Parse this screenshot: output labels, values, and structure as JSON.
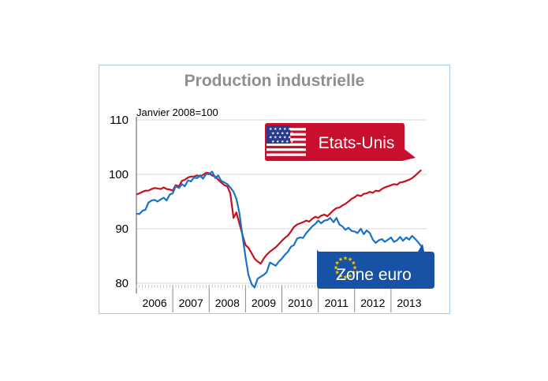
{
  "chart_data": {
    "type": "line",
    "title": "Production industrielle",
    "subtitle": "Janvier 2008=100",
    "xlabel": "",
    "ylabel": "",
    "ylim": [
      80,
      110
    ],
    "xlim": [
      2006.0,
      2014.0
    ],
    "yticks": [
      "80",
      "90",
      "100",
      "110"
    ],
    "xticks": [
      "2006",
      "2007",
      "2008",
      "2009",
      "2010",
      "2011",
      "2012",
      "2013"
    ],
    "grid": true,
    "series": [
      {
        "name": "Etats-Unis",
        "color": "#c8101e",
        "callout_color": "#c8102e",
        "flag": "us-flag-icon",
        "points": [
          [
            2006.0,
            96.3
          ],
          [
            2006.08,
            96.5
          ],
          [
            2006.17,
            96.8
          ],
          [
            2006.25,
            97.0
          ],
          [
            2006.33,
            97.0
          ],
          [
            2006.42,
            97.3
          ],
          [
            2006.5,
            97.5
          ],
          [
            2006.58,
            97.4
          ],
          [
            2006.67,
            97.3
          ],
          [
            2006.75,
            97.6
          ],
          [
            2006.83,
            97.3
          ],
          [
            2006.92,
            97.2
          ],
          [
            2007.0,
            97.0
          ],
          [
            2007.08,
            98.0
          ],
          [
            2007.17,
            97.8
          ],
          [
            2007.25,
            98.8
          ],
          [
            2007.33,
            99.0
          ],
          [
            2007.42,
            99.4
          ],
          [
            2007.5,
            99.6
          ],
          [
            2007.58,
            99.6
          ],
          [
            2007.67,
            99.8
          ],
          [
            2007.75,
            99.6
          ],
          [
            2007.83,
            99.9
          ],
          [
            2007.92,
            100.3
          ],
          [
            2008.0,
            100.2
          ],
          [
            2008.08,
            99.8
          ],
          [
            2008.17,
            99.6
          ],
          [
            2008.25,
            99.0
          ],
          [
            2008.33,
            98.5
          ],
          [
            2008.42,
            98.0
          ],
          [
            2008.5,
            97.8
          ],
          [
            2008.58,
            96.5
          ],
          [
            2008.67,
            92.0
          ],
          [
            2008.75,
            93.0
          ],
          [
            2008.83,
            91.0
          ],
          [
            2008.92,
            88.8
          ],
          [
            2009.0,
            87.0
          ],
          [
            2009.08,
            86.5
          ],
          [
            2009.17,
            85.5
          ],
          [
            2009.25,
            84.5
          ],
          [
            2009.33,
            84.0
          ],
          [
            2009.42,
            83.6
          ],
          [
            2009.5,
            84.5
          ],
          [
            2009.58,
            85.2
          ],
          [
            2009.67,
            85.8
          ],
          [
            2009.75,
            86.2
          ],
          [
            2009.83,
            86.6
          ],
          [
            2009.92,
            87.2
          ],
          [
            2010.0,
            87.8
          ],
          [
            2010.08,
            88.3
          ],
          [
            2010.17,
            88.8
          ],
          [
            2010.25,
            89.5
          ],
          [
            2010.33,
            90.3
          ],
          [
            2010.42,
            90.8
          ],
          [
            2010.5,
            91.0
          ],
          [
            2010.58,
            91.2
          ],
          [
            2010.67,
            91.5
          ],
          [
            2010.75,
            91.3
          ],
          [
            2010.83,
            91.8
          ],
          [
            2010.92,
            92.2
          ],
          [
            2011.0,
            92.0
          ],
          [
            2011.08,
            92.4
          ],
          [
            2011.17,
            92.6
          ],
          [
            2011.25,
            92.3
          ],
          [
            2011.33,
            92.8
          ],
          [
            2011.42,
            93.4
          ],
          [
            2011.5,
            93.8
          ],
          [
            2011.58,
            93.9
          ],
          [
            2011.67,
            94.3
          ],
          [
            2011.75,
            94.6
          ],
          [
            2011.83,
            95.0
          ],
          [
            2011.92,
            95.5
          ],
          [
            2012.0,
            95.8
          ],
          [
            2012.08,
            96.2
          ],
          [
            2012.17,
            96.0
          ],
          [
            2012.25,
            96.4
          ],
          [
            2012.33,
            96.5
          ],
          [
            2012.42,
            96.8
          ],
          [
            2012.5,
            96.6
          ],
          [
            2012.58,
            97.0
          ],
          [
            2012.67,
            96.9
          ],
          [
            2012.75,
            97.3
          ],
          [
            2012.83,
            97.6
          ],
          [
            2012.92,
            97.8
          ],
          [
            2013.0,
            98.0
          ],
          [
            2013.08,
            98.2
          ],
          [
            2013.17,
            98.1
          ],
          [
            2013.25,
            98.5
          ],
          [
            2013.33,
            98.6
          ],
          [
            2013.42,
            98.8
          ],
          [
            2013.5,
            99.0
          ],
          [
            2013.58,
            99.3
          ],
          [
            2013.67,
            99.8
          ],
          [
            2013.75,
            100.3
          ],
          [
            2013.83,
            100.8
          ]
        ]
      },
      {
        "name": "Zone euro",
        "color": "#1a72c6",
        "callout_color": "#1752a6",
        "flag": "eu-flag-icon",
        "points": [
          [
            2006.0,
            92.8
          ],
          [
            2006.08,
            92.7
          ],
          [
            2006.17,
            93.3
          ],
          [
            2006.25,
            93.5
          ],
          [
            2006.33,
            94.8
          ],
          [
            2006.42,
            95.2
          ],
          [
            2006.5,
            95.3
          ],
          [
            2006.58,
            95.0
          ],
          [
            2006.67,
            95.4
          ],
          [
            2006.75,
            95.7
          ],
          [
            2006.83,
            95.2
          ],
          [
            2006.92,
            96.3
          ],
          [
            2007.0,
            96.5
          ],
          [
            2007.08,
            97.8
          ],
          [
            2007.17,
            97.5
          ],
          [
            2007.25,
            98.2
          ],
          [
            2007.33,
            97.8
          ],
          [
            2007.42,
            98.9
          ],
          [
            2007.5,
            98.7
          ],
          [
            2007.58,
            99.4
          ],
          [
            2007.67,
            99.3
          ],
          [
            2007.75,
            99.8
          ],
          [
            2007.83,
            99.2
          ],
          [
            2007.92,
            100.1
          ],
          [
            2008.0,
            100.0
          ],
          [
            2008.08,
            100.5
          ],
          [
            2008.17,
            99.3
          ],
          [
            2008.25,
            99.8
          ],
          [
            2008.33,
            98.8
          ],
          [
            2008.42,
            98.5
          ],
          [
            2008.5,
            98.2
          ],
          [
            2008.58,
            97.6
          ],
          [
            2008.67,
            96.8
          ],
          [
            2008.75,
            95.5
          ],
          [
            2008.83,
            93.0
          ],
          [
            2008.92,
            88.5
          ],
          [
            2009.0,
            84.8
          ],
          [
            2009.08,
            81.5
          ],
          [
            2009.17,
            79.8
          ],
          [
            2009.25,
            79.2
          ],
          [
            2009.33,
            80.8
          ],
          [
            2009.42,
            81.2
          ],
          [
            2009.5,
            81.5
          ],
          [
            2009.58,
            82.0
          ],
          [
            2009.67,
            83.8
          ],
          [
            2009.75,
            83.5
          ],
          [
            2009.83,
            83.2
          ],
          [
            2009.92,
            84.0
          ],
          [
            2010.0,
            84.5
          ],
          [
            2010.08,
            85.2
          ],
          [
            2010.17,
            85.8
          ],
          [
            2010.25,
            86.7
          ],
          [
            2010.33,
            87.0
          ],
          [
            2010.42,
            88.2
          ],
          [
            2010.5,
            88.4
          ],
          [
            2010.58,
            88.3
          ],
          [
            2010.67,
            89.2
          ],
          [
            2010.75,
            89.8
          ],
          [
            2010.83,
            90.4
          ],
          [
            2010.92,
            90.9
          ],
          [
            2011.0,
            91.5
          ],
          [
            2011.08,
            91.0
          ],
          [
            2011.17,
            91.5
          ],
          [
            2011.25,
            91.6
          ],
          [
            2011.33,
            92.0
          ],
          [
            2011.42,
            91.2
          ],
          [
            2011.5,
            92.0
          ],
          [
            2011.58,
            90.8
          ],
          [
            2011.67,
            90.4
          ],
          [
            2011.75,
            89.8
          ],
          [
            2011.83,
            90.2
          ],
          [
            2011.92,
            89.6
          ],
          [
            2012.0,
            89.5
          ],
          [
            2012.08,
            89.2
          ],
          [
            2012.17,
            90.0
          ],
          [
            2012.25,
            89.0
          ],
          [
            2012.33,
            89.7
          ],
          [
            2012.42,
            89.2
          ],
          [
            2012.5,
            88.0
          ],
          [
            2012.58,
            87.4
          ],
          [
            2012.67,
            87.9
          ],
          [
            2012.75,
            88.1
          ],
          [
            2012.83,
            87.6
          ],
          [
            2012.92,
            88.0
          ],
          [
            2013.0,
            88.4
          ],
          [
            2013.08,
            87.6
          ],
          [
            2013.17,
            87.9
          ],
          [
            2013.25,
            88.5
          ],
          [
            2013.33,
            87.8
          ],
          [
            2013.42,
            88.4
          ],
          [
            2013.5,
            88.0
          ],
          [
            2013.58,
            88.7
          ],
          [
            2013.67,
            88.1
          ],
          [
            2013.75,
            87.5
          ],
          [
            2013.83,
            86.8
          ],
          [
            2013.92,
            85.2
          ]
        ]
      }
    ]
  }
}
